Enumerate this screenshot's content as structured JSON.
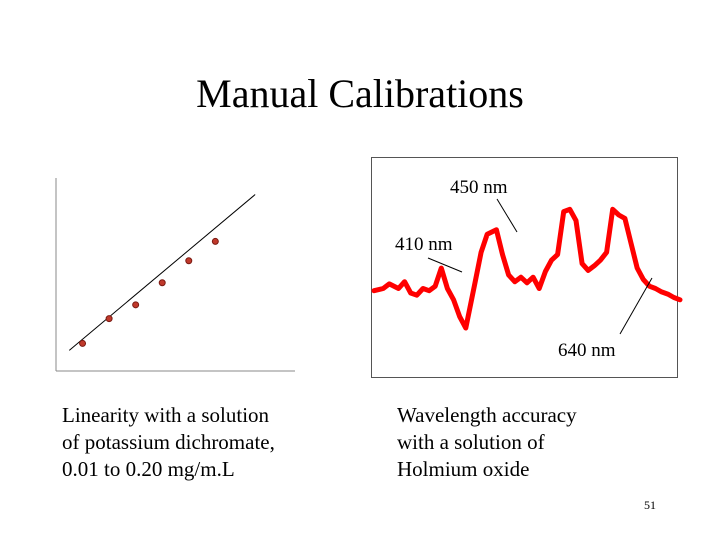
{
  "slide": {
    "title": "Manual Calibrations",
    "page_number": "51"
  },
  "left_panel": {
    "caption_lines": [
      "Linearity with a solution",
      "of potassium dichromate,",
      "0.01 to 0.20 mg/m.L"
    ]
  },
  "right_panel": {
    "caption_lines": [
      "Wavelength accuracy",
      "with a solution of",
      "Holmium oxide"
    ],
    "annotations": {
      "peak_450": "450 nm",
      "peak_410": "410 nm",
      "peak_640": "640 nm"
    }
  },
  "colors": {
    "spectrum": "#ff0000",
    "point_fill": "#c0392b",
    "point_stroke": "#7a1a12"
  },
  "chart_data": [
    {
      "type": "scatter",
      "title": "",
      "xlabel": "",
      "ylabel": "",
      "x": [
        1,
        2,
        3,
        4,
        5,
        6
      ],
      "y": [
        1.0,
        1.9,
        2.4,
        3.2,
        4.0,
        4.7
      ],
      "fit_line": {
        "from": [
          0.5,
          0.75
        ],
        "to": [
          7.5,
          6.4
        ]
      },
      "xlim": [
        0,
        9
      ],
      "ylim": [
        0,
        7
      ],
      "grid": false,
      "legend": "none"
    },
    {
      "type": "line",
      "title": "",
      "xlabel": "",
      "ylabel": "",
      "note": "Holmium oxide absorbance spectrum, relative units",
      "x": [
        0,
        3,
        5,
        8,
        10,
        12,
        14,
        16,
        18,
        20,
        22,
        24,
        26,
        28,
        30,
        33,
        35,
        37,
        40,
        42,
        44,
        46,
        48,
        50,
        52,
        54,
        56,
        58,
        60,
        62,
        64,
        66,
        68,
        70,
        72,
        74,
        76,
        78,
        80,
        82,
        84,
        86,
        88,
        90,
        92,
        94,
        96,
        98,
        100
      ],
      "y": [
        0.28,
        0.3,
        0.34,
        0.3,
        0.36,
        0.26,
        0.24,
        0.3,
        0.28,
        0.32,
        0.48,
        0.3,
        0.2,
        0.05,
        -0.05,
        0.35,
        0.62,
        0.78,
        0.82,
        0.6,
        0.42,
        0.36,
        0.4,
        0.35,
        0.4,
        0.3,
        0.45,
        0.55,
        0.6,
        0.98,
        1.0,
        0.9,
        0.52,
        0.46,
        0.5,
        0.55,
        0.62,
        1.0,
        0.95,
        0.92,
        0.7,
        0.48,
        0.38,
        0.32,
        0.3,
        0.27,
        0.25,
        0.22,
        0.2
      ],
      "ylim": [
        -0.2,
        1.1
      ],
      "grid": false,
      "legend": "none"
    }
  ]
}
